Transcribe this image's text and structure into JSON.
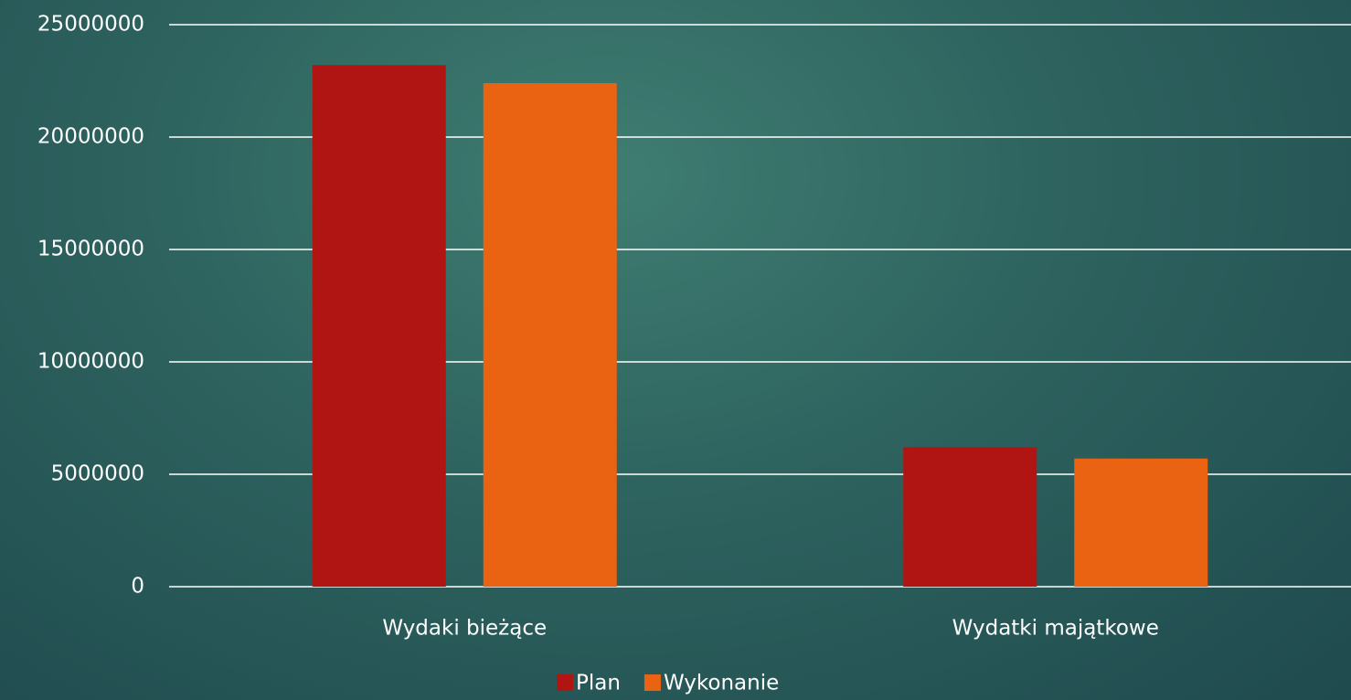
{
  "chart_data": {
    "type": "bar",
    "categories": [
      "Wydaki bieżące",
      "Wydatki majątkowe"
    ],
    "series": [
      {
        "name": "Plan",
        "color": "#b01513",
        "values": [
          23200000,
          6200000
        ]
      },
      {
        "name": "Wykonanie",
        "color": "#ea6312",
        "values": [
          22400000,
          5700000
        ]
      }
    ],
    "ylim": [
      0,
      25000000
    ],
    "yticks": [
      0,
      5000000,
      10000000,
      15000000,
      20000000,
      25000000
    ],
    "grid": true,
    "legend": "bottom"
  }
}
